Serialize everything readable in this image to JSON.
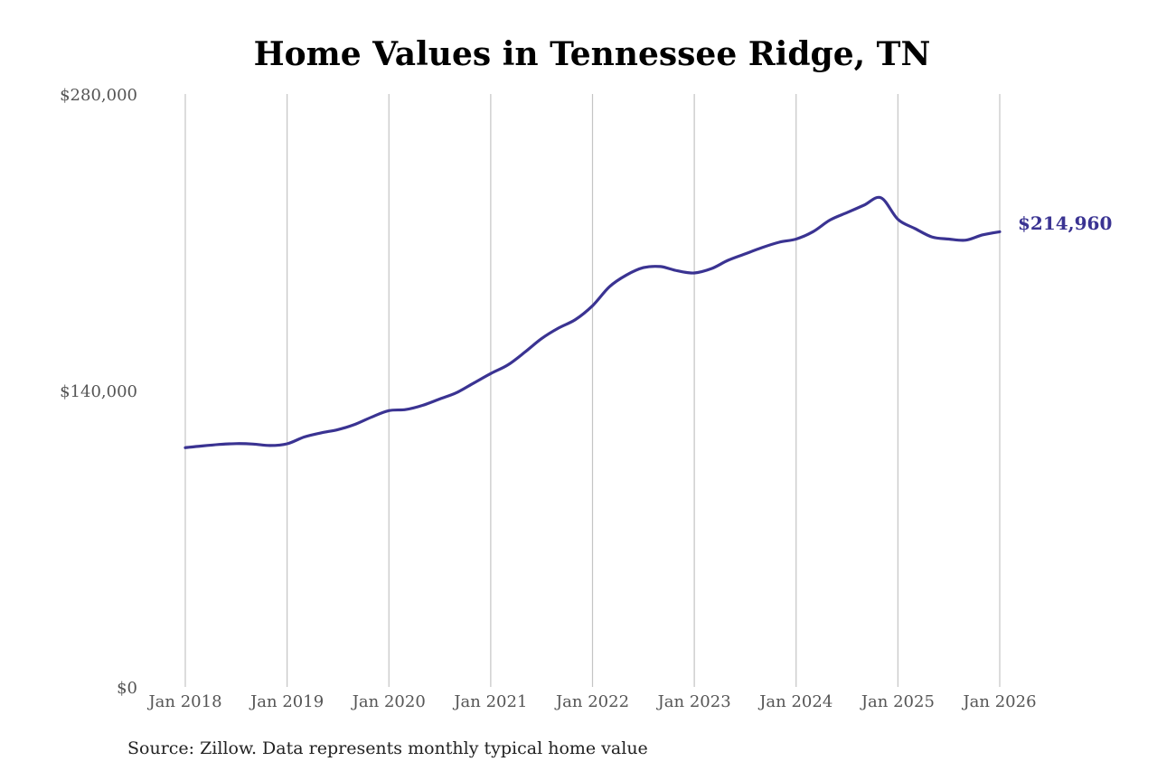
{
  "chart_data": {
    "type": "line",
    "title": "Home Values in Tennessee Ridge, TN",
    "xlabel": "",
    "ylabel": "",
    "x_ticks": [
      "Jan 2018",
      "Jan 2019",
      "Jan 2020",
      "Jan 2021",
      "Jan 2022",
      "Jan 2023",
      "Jan 2024",
      "Jan 2025",
      "Jan 2026"
    ],
    "y_ticks": [
      "$0",
      "$140,000",
      "$280,000"
    ],
    "ylim": [
      0,
      280000
    ],
    "xlim": [
      "2018-01",
      "2026-01"
    ],
    "grid": "vertical lines at each year tick",
    "legend": "none",
    "series": [
      {
        "color": "#3a3392",
        "points": [
          [
            "2018-01",
            113000
          ],
          [
            "2018-03",
            113800
          ],
          [
            "2018-05",
            114500
          ],
          [
            "2018-07",
            114900
          ],
          [
            "2018-09",
            114700
          ],
          [
            "2018-11",
            114000
          ],
          [
            "2019-01",
            114800
          ],
          [
            "2019-03",
            118000
          ],
          [
            "2019-05",
            120000
          ],
          [
            "2019-07",
            121500
          ],
          [
            "2019-09",
            124000
          ],
          [
            "2019-11",
            127500
          ],
          [
            "2020-01",
            130500
          ],
          [
            "2020-03",
            131000
          ],
          [
            "2020-05",
            133000
          ],
          [
            "2020-07",
            136000
          ],
          [
            "2020-09",
            139000
          ],
          [
            "2020-11",
            143500
          ],
          [
            "2021-01",
            148000
          ],
          [
            "2021-03",
            152000
          ],
          [
            "2021-05",
            158000
          ],
          [
            "2021-07",
            164500
          ],
          [
            "2021-09",
            169500
          ],
          [
            "2021-11",
            173500
          ],
          [
            "2022-01",
            180000
          ],
          [
            "2022-03",
            189000
          ],
          [
            "2022-05",
            194500
          ],
          [
            "2022-07",
            198000
          ],
          [
            "2022-09",
            198500
          ],
          [
            "2022-11",
            196500
          ],
          [
            "2023-01",
            195500
          ],
          [
            "2023-03",
            197500
          ],
          [
            "2023-05",
            201500
          ],
          [
            "2023-07",
            204500
          ],
          [
            "2023-09",
            207500
          ],
          [
            "2023-11",
            210000
          ],
          [
            "2024-01",
            211500
          ],
          [
            "2024-03",
            215000
          ],
          [
            "2024-05",
            220500
          ],
          [
            "2024-07",
            224000
          ],
          [
            "2024-09",
            227500
          ],
          [
            "2024-11",
            231000
          ],
          [
            "2025-01",
            220800
          ],
          [
            "2025-03",
            216500
          ],
          [
            "2025-05",
            212500
          ],
          [
            "2025-07",
            211500
          ],
          [
            "2025-09",
            211000
          ],
          [
            "2025-11",
            213500
          ],
          [
            "2026-01",
            214960
          ]
        ]
      }
    ],
    "end_label": "$214,960",
    "source": "Source: Zillow. Data represents monthly typical home value"
  }
}
